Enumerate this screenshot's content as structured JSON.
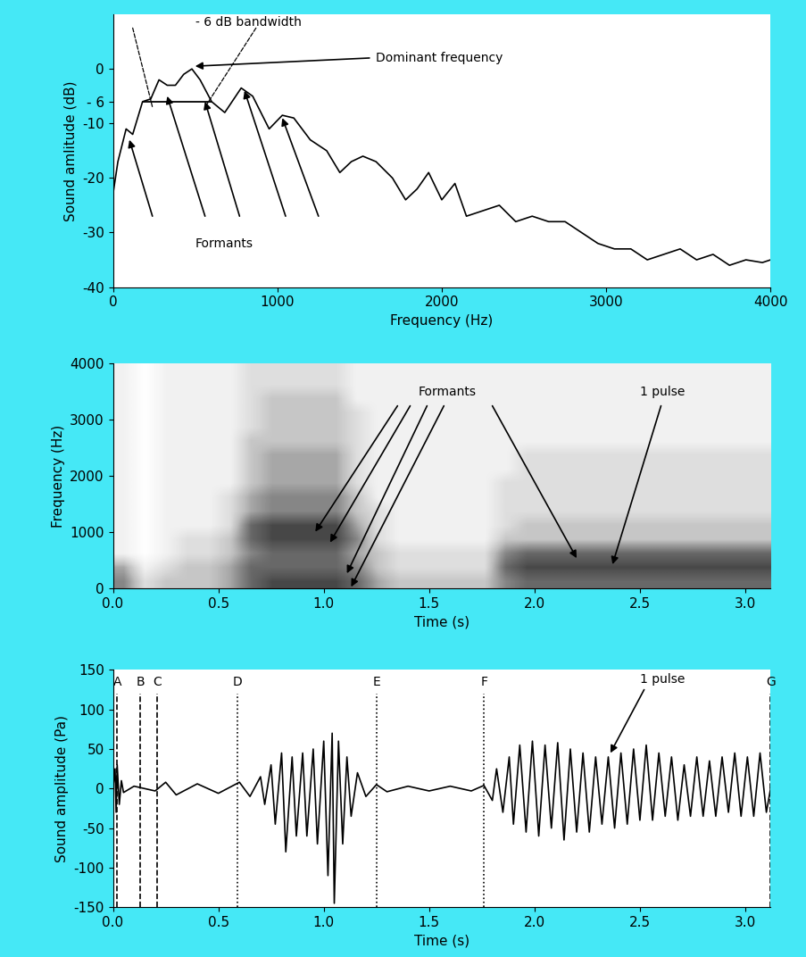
{
  "chart_data": [
    {
      "type": "line",
      "x_label": "Frequency (Hz)",
      "y_label": "Sound amlitude (dB)",
      "xlim": [
        0,
        4000
      ],
      "ylim": [
        -40,
        10
      ],
      "xticks": [
        0,
        1000,
        2000,
        3000,
        4000
      ],
      "yticks": [
        0,
        {
          "value": -6,
          "label": "- 6"
        },
        -10,
        -20,
        -30,
        -40
      ],
      "color": "black",
      "x": [
        0,
        30,
        80,
        120,
        180,
        230,
        280,
        330,
        380,
        430,
        480,
        530,
        600,
        680,
        780,
        850,
        950,
        1030,
        1100,
        1200,
        1300,
        1380,
        1450,
        1520,
        1600,
        1700,
        1780,
        1850,
        1920,
        2000,
        2080,
        2150,
        2250,
        2350,
        2450,
        2550,
        2650,
        2750,
        2850,
        2950,
        3050,
        3150,
        3250,
        3350,
        3450,
        3550,
        3650,
        3750,
        3850,
        3950,
        4000
      ],
      "values": [
        -23,
        -17,
        -11,
        -12,
        -6,
        -5.5,
        -2,
        -3,
        -3,
        -1,
        0,
        -2,
        -6,
        -8,
        -3.5,
        -5,
        -11,
        -8.5,
        -9,
        -13,
        -15,
        -19,
        -17,
        -16,
        -17,
        -20,
        -24,
        -22,
        -19,
        -24,
        -21,
        -27,
        -26,
        -25,
        -28,
        -27,
        -28,
        -28,
        -30,
        -32,
        -33,
        -33,
        -35,
        -34,
        -33,
        -35,
        -34,
        -36,
        -35,
        -35.5,
        -35
      ],
      "bandwidth": {
        "x": [
          180,
          600
        ],
        "y": -6
      },
      "annotations": [
        {
          "text": "- 6 dB bandwidth",
          "x": 500,
          "y": 8.5,
          "lines": [
            [
              120,
              7.5,
              240,
              -7
            ],
            [
              870,
              7.5,
              560,
              -7
            ]
          ]
        },
        {
          "text": "Dominant frequency",
          "x": 1600,
          "y": 2,
          "arrows": [
            [
              1560,
              2,
              500,
              0.5
            ]
          ]
        },
        {
          "text": "Formants",
          "x": 500,
          "y": -32,
          "arrows": [
            [
              240,
              -27,
              100,
              -13
            ],
            [
              560,
              -27,
              330,
              -5
            ],
            [
              770,
              -27,
              560,
              -6
            ],
            [
              1050,
              -27,
              800,
              -4
            ],
            [
              1250,
              -27,
              1030,
              -9
            ]
          ]
        }
      ]
    },
    {
      "type": "heatmap",
      "x_label": "Time (s)",
      "y_label": "Frequency (Hz)",
      "xlim": [
        0,
        3.12
      ],
      "ylim": [
        0,
        4000
      ],
      "xticks": [
        0.0,
        0.5,
        1.0,
        1.5,
        2.0,
        2.5,
        3.0
      ],
      "yticks": [
        0,
        1000,
        2000,
        3000,
        4000
      ],
      "color": "Greys",
      "color_range": [
        0,
        9
      ],
      "cells": [
        [
          5,
          2,
          3,
          3,
          3,
          4,
          6,
          7,
          7,
          7,
          7,
          6,
          4,
          3,
          3,
          3,
          3,
          3,
          5,
          6,
          6,
          6,
          6,
          6,
          6,
          6,
          6,
          6,
          6,
          6,
          6
        ],
        [
          4,
          1,
          2,
          3,
          3,
          4,
          6,
          6,
          6,
          6,
          6,
          5,
          3,
          2,
          2,
          2,
          2,
          2,
          6,
          7,
          7,
          7,
          7,
          7,
          7,
          7,
          7,
          7,
          7,
          7,
          7
        ],
        [
          1,
          0,
          1,
          2,
          2,
          3,
          5,
          6,
          6,
          6,
          6,
          4,
          3,
          2,
          2,
          2,
          2,
          2,
          5,
          6,
          6,
          6,
          6,
          6,
          6,
          6,
          6,
          6,
          6,
          6,
          6
        ],
        [
          1,
          0,
          1,
          2,
          2,
          3,
          6,
          7,
          7,
          7,
          7,
          5,
          2,
          1,
          1,
          1,
          1,
          1,
          3,
          3,
          3,
          3,
          3,
          3,
          3,
          3,
          3,
          3,
          3,
          3,
          3
        ],
        [
          1,
          0,
          1,
          1,
          1,
          2,
          6,
          7,
          7,
          7,
          7,
          4,
          2,
          1,
          1,
          1,
          1,
          1,
          2,
          3,
          3,
          3,
          3,
          3,
          3,
          3,
          3,
          3,
          3,
          3,
          3
        ],
        [
          1,
          0,
          1,
          1,
          1,
          2,
          4,
          5,
          5,
          5,
          5,
          3,
          2,
          1,
          1,
          1,
          1,
          1,
          2,
          2,
          2,
          2,
          2,
          2,
          2,
          2,
          2,
          2,
          2,
          2,
          2
        ],
        [
          1,
          0,
          1,
          1,
          1,
          2,
          4,
          5,
          5,
          5,
          5,
          3,
          1,
          1,
          1,
          1,
          1,
          1,
          2,
          2,
          2,
          2,
          2,
          2,
          2,
          2,
          2,
          2,
          2,
          2,
          2
        ],
        [
          1,
          0,
          1,
          1,
          1,
          1,
          3,
          4,
          4,
          4,
          4,
          2,
          1,
          1,
          1,
          1,
          1,
          1,
          2,
          2,
          2,
          2,
          2,
          2,
          2,
          2,
          2,
          2,
          2,
          2,
          2
        ],
        [
          1,
          0,
          1,
          1,
          1,
          1,
          3,
          4,
          4,
          4,
          4,
          2,
          1,
          1,
          1,
          1,
          1,
          1,
          1,
          2,
          2,
          2,
          2,
          2,
          2,
          2,
          2,
          2,
          2,
          2,
          2
        ],
        [
          1,
          0,
          1,
          1,
          1,
          1,
          3,
          4,
          4,
          4,
          4,
          2,
          1,
          1,
          1,
          1,
          1,
          1,
          1,
          2,
          2,
          2,
          2,
          2,
          2,
          2,
          2,
          2,
          2,
          2,
          2
        ],
        [
          1,
          0,
          1,
          1,
          1,
          1,
          3,
          3,
          3,
          3,
          3,
          2,
          1,
          1,
          1,
          1,
          1,
          1,
          1,
          1,
          1,
          1,
          1,
          1,
          1,
          1,
          1,
          1,
          1,
          1,
          1
        ],
        [
          1,
          0,
          1,
          1,
          1,
          1,
          2,
          3,
          3,
          3,
          3,
          2,
          1,
          1,
          1,
          1,
          1,
          1,
          1,
          1,
          1,
          1,
          1,
          1,
          1,
          1,
          1,
          1,
          1,
          1,
          1
        ],
        [
          1,
          0,
          1,
          1,
          1,
          1,
          2,
          3,
          3,
          3,
          3,
          2,
          1,
          1,
          1,
          1,
          1,
          1,
          1,
          1,
          1,
          1,
          1,
          1,
          1,
          1,
          1,
          1,
          1,
          1,
          1
        ],
        [
          1,
          0,
          1,
          1,
          1,
          1,
          2,
          3,
          3,
          3,
          3,
          1,
          1,
          1,
          1,
          1,
          1,
          1,
          1,
          1,
          1,
          1,
          1,
          1,
          1,
          1,
          1,
          1,
          1,
          1,
          1
        ],
        [
          1,
          0,
          1,
          1,
          1,
          1,
          2,
          2,
          2,
          2,
          2,
          1,
          1,
          1,
          1,
          1,
          1,
          1,
          1,
          1,
          1,
          1,
          1,
          1,
          1,
          1,
          1,
          1,
          1,
          1,
          1
        ],
        [
          1,
          0,
          1,
          1,
          1,
          1,
          2,
          2,
          2,
          2,
          2,
          1,
          1,
          1,
          1,
          1,
          1,
          1,
          1,
          1,
          1,
          1,
          1,
          1,
          1,
          1,
          1,
          1,
          1,
          1,
          1
        ]
      ],
      "annotations": [
        {
          "text": "Formants",
          "x": 1.45,
          "y": 3500,
          "arrows": [
            [
              1.35,
              3250,
              0.96,
              1010
            ],
            [
              1.41,
              3250,
              1.03,
              820
            ],
            [
              1.49,
              3250,
              1.11,
              270
            ],
            [
              1.57,
              3250,
              1.13,
              30
            ],
            [
              1.8,
              3250,
              2.2,
              540
            ]
          ]
        },
        {
          "text": "1 pulse",
          "x": 2.5,
          "y": 3500,
          "arrows": [
            [
              2.6,
              3250,
              2.37,
              430
            ]
          ]
        }
      ]
    },
    {
      "type": "line",
      "x_label": "Time (s)",
      "y_label": "Sound amplitude (Pa)",
      "xlim": [
        0,
        3.12
      ],
      "ylim": [
        -150,
        150
      ],
      "xticks": [
        0.0,
        0.5,
        1.0,
        1.5,
        2.0,
        2.5,
        3.0
      ],
      "yticks": [
        -150,
        -100,
        -50,
        0,
        50,
        100,
        150
      ],
      "color": "black",
      "x": [
        0.0,
        0.01,
        0.015,
        0.02,
        0.03,
        0.04,
        0.05,
        0.1,
        0.2,
        0.25,
        0.3,
        0.4,
        0.5,
        0.6,
        0.65,
        0.7,
        0.72,
        0.75,
        0.77,
        0.8,
        0.82,
        0.85,
        0.87,
        0.9,
        0.92,
        0.95,
        0.97,
        1.0,
        1.02,
        1.04,
        1.05,
        1.07,
        1.09,
        1.11,
        1.13,
        1.16,
        1.2,
        1.25,
        1.3,
        1.4,
        1.5,
        1.6,
        1.7,
        1.76,
        1.8,
        1.82,
        1.85,
        1.88,
        1.9,
        1.93,
        1.96,
        1.99,
        2.02,
        2.05,
        2.08,
        2.11,
        2.14,
        2.17,
        2.2,
        2.23,
        2.26,
        2.29,
        2.32,
        2.35,
        2.38,
        2.41,
        2.44,
        2.47,
        2.5,
        2.53,
        2.56,
        2.59,
        2.62,
        2.65,
        2.68,
        2.71,
        2.74,
        2.77,
        2.8,
        2.83,
        2.86,
        2.89,
        2.92,
        2.95,
        2.98,
        3.01,
        3.04,
        3.07,
        3.1,
        3.12
      ],
      "values": [
        0,
        25,
        -30,
        30,
        -20,
        10,
        -5,
        3,
        -3,
        8,
        -8,
        6,
        -6,
        8,
        -10,
        15,
        -20,
        30,
        -45,
        45,
        -80,
        40,
        -60,
        45,
        -60,
        50,
        -70,
        60,
        -110,
        70,
        -145,
        60,
        -70,
        40,
        -35,
        20,
        -10,
        5,
        -4,
        3,
        -3,
        3,
        -3,
        4,
        -15,
        25,
        -30,
        40,
        -45,
        55,
        -55,
        60,
        -60,
        55,
        -50,
        58,
        -65,
        50,
        -55,
        45,
        -55,
        40,
        -45,
        40,
        -50,
        45,
        -45,
        50,
        -40,
        55,
        -40,
        45,
        -35,
        40,
        -40,
        30,
        -35,
        40,
        -35,
        35,
        -35,
        40,
        -30,
        45,
        -35,
        40,
        -35,
        45,
        -30,
        0
      ],
      "events": [
        {
          "label": "A",
          "x": 0.02,
          "line_style": "dashed"
        },
        {
          "label": "B",
          "x": 0.13,
          "line_style": "dashed"
        },
        {
          "label": "C",
          "x": 0.21,
          "line_style": "dashed"
        },
        {
          "label": "D",
          "x": 0.59,
          "line_style": "dotted"
        },
        {
          "label": "E",
          "x": 1.25,
          "line_style": "dotted"
        },
        {
          "label": "F",
          "x": 1.76,
          "line_style": "dotted"
        },
        {
          "label": "G",
          "x": 3.12,
          "line_style": "dashed"
        }
      ],
      "annotations": [
        {
          "text": "1 pulse",
          "x": 2.5,
          "y": 138,
          "arrows": [
            [
              2.52,
              125,
              2.36,
              45
            ]
          ]
        }
      ]
    }
  ]
}
